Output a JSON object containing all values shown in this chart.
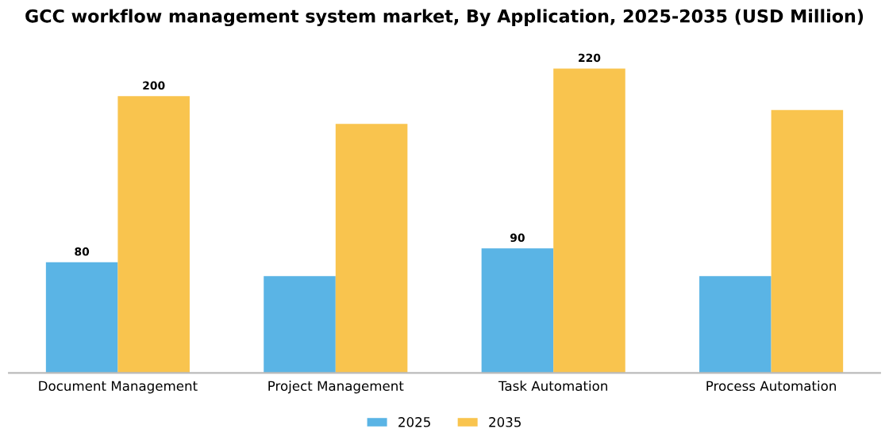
{
  "chart_data": {
    "type": "bar",
    "title": "GCC workflow management system market, By Application, 2025-2035 (USD Million)",
    "categories": [
      "Document Management",
      "Project Management",
      "Task Automation",
      "Process Automation"
    ],
    "series": [
      {
        "name": "2025",
        "color": "#5ab4e5",
        "values": [
          80,
          70,
          90,
          70
        ],
        "value_labels": [
          "80",
          null,
          "90",
          null
        ]
      },
      {
        "name": "2035",
        "color": "#f9c44e",
        "values": [
          200,
          180,
          220,
          190
        ],
        "value_labels": [
          "200",
          null,
          "220",
          null
        ]
      }
    ],
    "legend": "bottom",
    "grid": false
  }
}
